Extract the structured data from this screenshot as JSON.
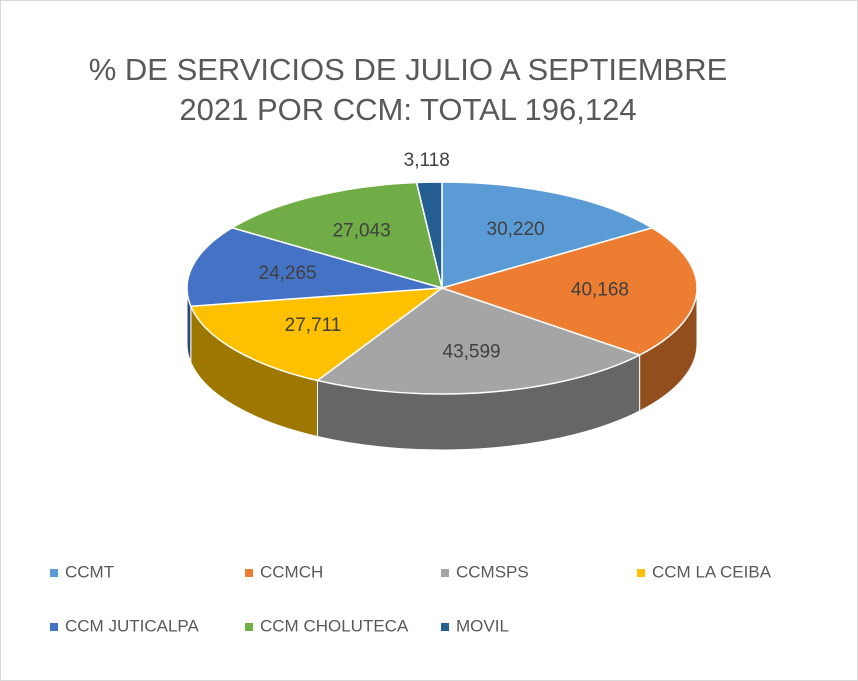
{
  "chart_data": {
    "type": "pie",
    "title": [
      "% DE SERVICIOS  DE JULIO A SEPTIEMBRE",
      "2021 POR CCM: TOTAL 196,124"
    ],
    "categories": [
      "CCMT",
      "CCMCH",
      "CCMSPS",
      "CCM LA CEIBA",
      "CCM JUTICALPA",
      "CCM CHOLUTECA",
      "MOVIL"
    ],
    "values": [
      30220,
      40168,
      43599,
      27711,
      24265,
      27043,
      3118
    ],
    "value_labels": [
      "30,220",
      "40,168",
      "43,599",
      "27,711",
      "24,265",
      "27,043",
      "3,118"
    ],
    "colors": [
      "#5b9bd5",
      "#ed7d31",
      "#a5a5a5",
      "#ffc000",
      "#4472c4",
      "#70ad47",
      "#255e91"
    ],
    "legend": "bottom"
  }
}
